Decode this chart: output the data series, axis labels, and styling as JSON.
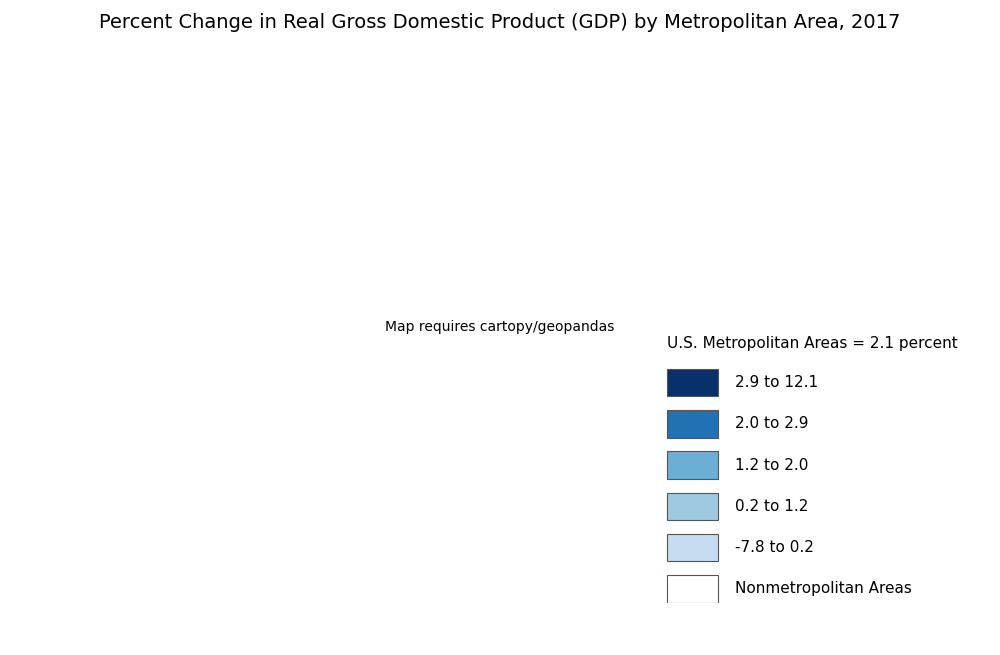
{
  "title": "Percent Change in Real Gross Domestic Product (GDP) by Metropolitan Area, 2017",
  "legend_title": "U.S. Metropolitan Areas = 2.1 percent",
  "legend_entries": [
    {
      "label": "2.9 to 12.1",
      "color": "#08306b"
    },
    {
      "label": "2.0 to 2.9",
      "color": "#2171b5"
    },
    {
      "label": "1.2 to 2.0",
      "color": "#6baed6"
    },
    {
      "label": "0.2 to 1.2",
      "color": "#9ecae1"
    },
    {
      "label": "-7.8 to 0.2",
      "color": "#c6dbef"
    },
    {
      "label": "Nonmetropolitan Areas",
      "color": "#ffffff"
    }
  ],
  "background_color": "#ffffff",
  "border_color": "#555555",
  "title_fontsize": 14,
  "legend_fontsize": 11,
  "fig_width": 10.0,
  "fig_height": 6.55
}
